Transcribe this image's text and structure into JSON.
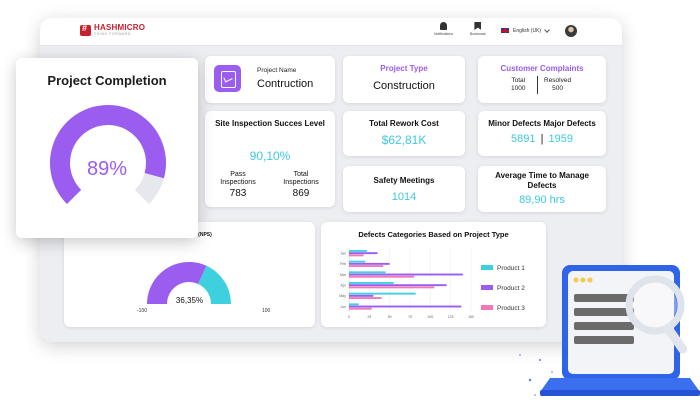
{
  "header": {
    "logo_name": "HASHMICRO",
    "logo_tagline": "THINK FORWARD",
    "notifications_label": "Notifications",
    "bookmark_label": "Bookmark",
    "language": "English (UK)"
  },
  "completion": {
    "title": "Project Completion",
    "percent_label": "89%",
    "value": 0.89,
    "color": "#9b5cf0",
    "track_color": "#e6e8ee"
  },
  "project_name": {
    "label": "Project Name",
    "value": "Contruction"
  },
  "project_type": {
    "label": "Project Type",
    "value": "Construction"
  },
  "complaints": {
    "label": "Customer Complaints",
    "total_label": "Total",
    "total_value": "1000",
    "resolved_label": "Resolved",
    "resolved_value": "500"
  },
  "inspection": {
    "title": "Site Inspection Succes Level",
    "value": "90,10%",
    "pass_label": "Pass Inspections",
    "pass_value": "783",
    "total_label": "Total Inspections",
    "total_value": "869"
  },
  "rework": {
    "label": "Total Rework Cost",
    "value": "$62,81K"
  },
  "defects": {
    "label": "Minor Defects Major Defects",
    "minor": "5891",
    "major": "1959"
  },
  "safety": {
    "label": "Safety Meetings",
    "value": "1014"
  },
  "avg_time": {
    "label": "Average Time to Manage Defects",
    "value": "89,90 hrs"
  },
  "nps": {
    "title_fragment": "ore (NPS)",
    "value_label": "36,35%",
    "value": 0.3635,
    "min_label": "-100",
    "max_label": "100",
    "purple": "#9b5cf0",
    "cyan": "#3fd0e0"
  },
  "chart_data": {
    "type": "bar",
    "orientation": "horizontal",
    "title": "Defects Categories Based on Project Type",
    "categories": [
      "Jan",
      "Feb",
      "Mar",
      "Apr",
      "May",
      "Jun"
    ],
    "x_ticks": [
      "0",
      "25",
      "50",
      "75",
      "100",
      "125",
      "150"
    ],
    "xlim": [
      0,
      150
    ],
    "series": [
      {
        "name": "Product 1",
        "color": "#3fd0e0",
        "values": [
          22,
          20,
          45,
          55,
          82,
          12
        ]
      },
      {
        "name": "Product 2",
        "color": "#9b5cf0",
        "values": [
          35,
          50,
          140,
          120,
          30,
          138
        ]
      },
      {
        "name": "Product 3",
        "color": "#f07ab8",
        "values": [
          18,
          42,
          80,
          105,
          40,
          28
        ]
      }
    ],
    "legend_position": "right"
  }
}
